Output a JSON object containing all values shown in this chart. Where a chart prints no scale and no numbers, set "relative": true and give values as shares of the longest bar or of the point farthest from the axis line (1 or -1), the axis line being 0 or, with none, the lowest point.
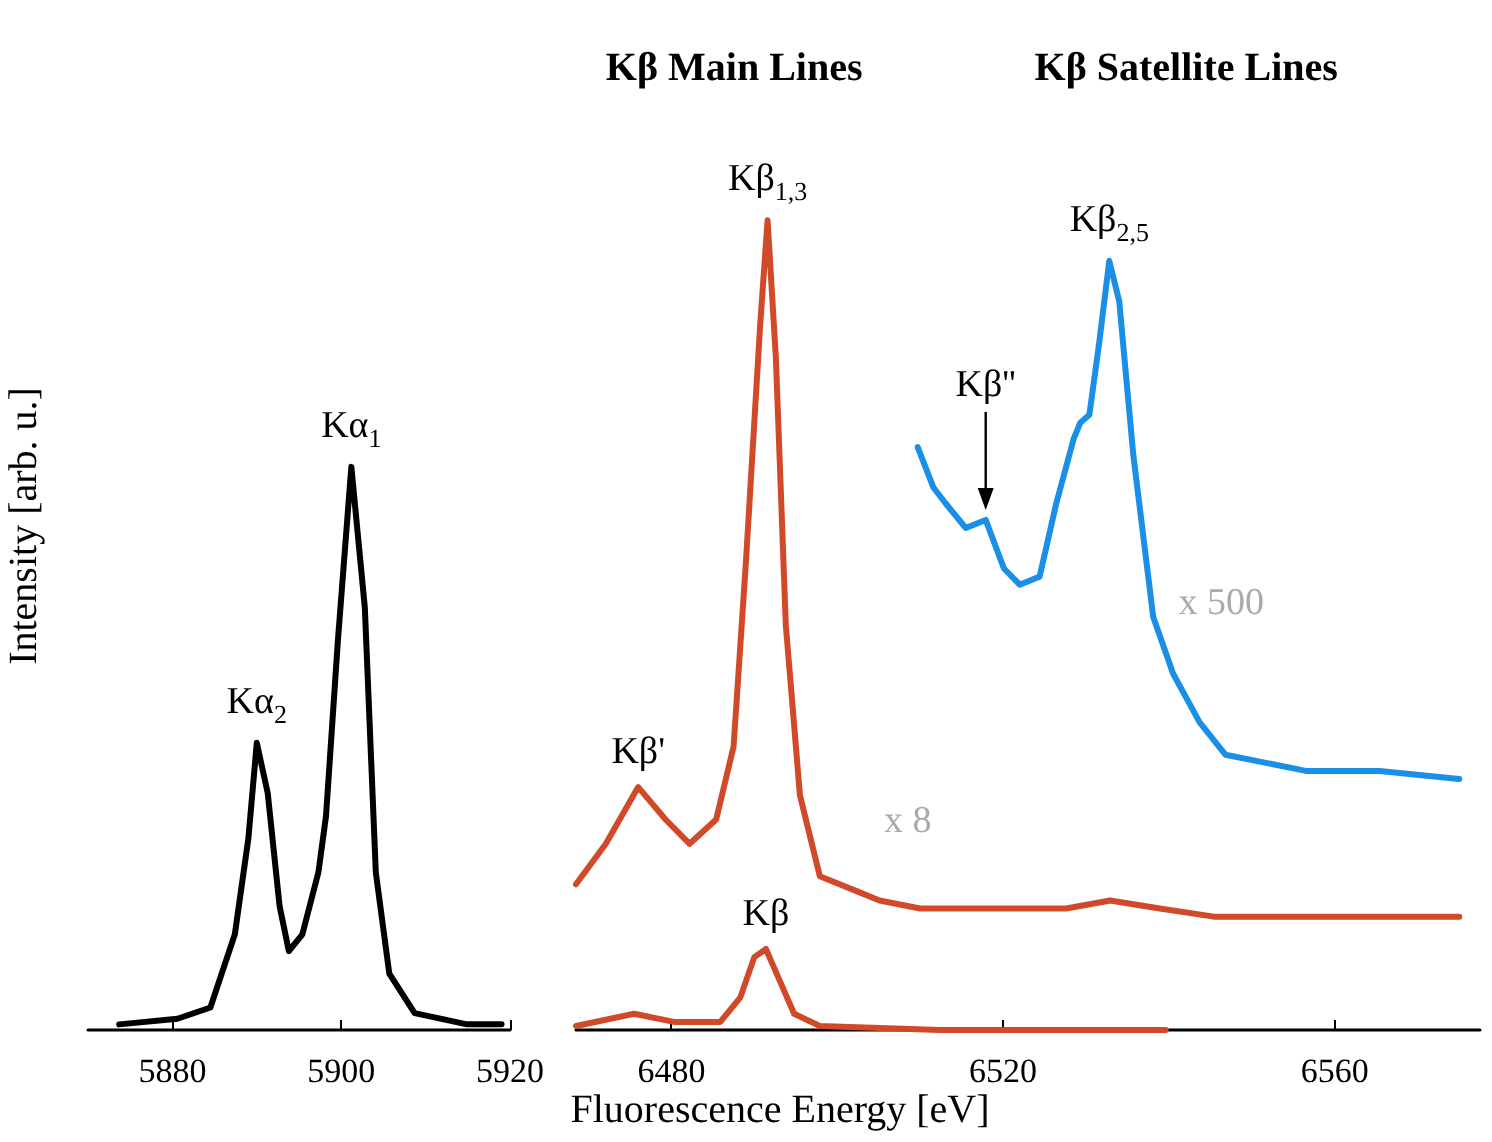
{
  "chart_data": [
    {
      "type": "line",
      "relative": true,
      "ylabel": "Intensity [arb. u.]",
      "xlim": [
        5870,
        5920
      ],
      "xticks": [
        5880,
        5900,
        5920
      ],
      "grid": false,
      "marker": "none",
      "line_style": "solid",
      "series": [
        {
          "color": "#000000",
          "x": [
            5873.7,
            5880.6,
            5884.5,
            5887.4,
            5889.0,
            5890.0,
            5891.3,
            5892.7,
            5893.8,
            5895.4,
            5897.3,
            5898.2,
            5899.6,
            5901.2,
            5902.8,
            5904.1,
            5905.7,
            5908.7,
            5914.9,
            5919.0
          ],
          "values": [
            0.01,
            0.02,
            0.04,
            0.17,
            0.34,
            0.51,
            0.42,
            0.22,
            0.14,
            0.17,
            0.28,
            0.38,
            0.69,
            1.0,
            0.75,
            0.28,
            0.1,
            0.03,
            0.01,
            0.01
          ]
        }
      ],
      "annotations": [
        {
          "text": "Kα$_{2}$",
          "x": 5890.0,
          "y": 0.51
        },
        {
          "text": "Kα$_{1}$",
          "x": 5901.2,
          "y": 1.0
        }
      ]
    },
    {
      "type": "line",
      "relative": true,
      "xlabel": "Fluorescence Energy [eV]",
      "xlim": [
        6468.5,
        6577.5
      ],
      "xticks": [
        6480,
        6520,
        6560
      ],
      "grid": false,
      "marker": "none",
      "line_style": "solid",
      "series": [
        {
          "color": "#d04a2a",
          "x": [
            6468.5,
            6475.5,
            6480.3,
            6485.9,
            6488.3,
            6490.0,
            6491.4,
            6493.1,
            6494.8,
            6497.9,
            6512.4,
            6539.6
          ],
          "values": [
            0.005,
            0.02,
            0.01,
            0.01,
            0.04,
            0.09,
            0.1,
            0.06,
            0.02,
            0.005,
            0,
            0
          ]
        },
        {
          "name": "x 8",
          "color": "#d04a2a",
          "x": [
            6468.5,
            6472.1,
            6476.0,
            6479.3,
            6482.2,
            6485.4,
            6487.5,
            6489.0,
            6490.7,
            6491.6,
            6492.6,
            6493.8,
            6495.5,
            6497.9,
            6502.7,
            6505.1,
            6510.0,
            6520.1,
            6527.6,
            6532.9,
            6538.9,
            6545.4,
            6575.0
          ],
          "values": [
            0.18,
            0.23,
            0.3,
            0.26,
            0.23,
            0.26,
            0.35,
            0.58,
            0.87,
            1.0,
            0.83,
            0.5,
            0.29,
            0.19,
            0.17,
            0.16,
            0.15,
            0.15,
            0.15,
            0.16,
            0.15,
            0.14,
            0.14
          ]
        },
        {
          "name": "x 500",
          "color": "#1a8fe6",
          "x": [
            6509.7,
            6511.6,
            6513.1,
            6515.5,
            6517.9,
            6520.1,
            6522.0,
            6524.4,
            6526.4,
            6528.5,
            6529.3,
            6530.4,
            6531.6,
            6532.8,
            6534.0,
            6535.7,
            6538.1,
            6540.5,
            6543.7,
            6546.8,
            6551.7,
            6556.5,
            6565.4,
            6575.0
          ],
          "values": [
            0.72,
            0.67,
            0.65,
            0.62,
            0.63,
            0.57,
            0.55,
            0.56,
            0.65,
            0.73,
            0.75,
            0.76,
            0.85,
            0.95,
            0.9,
            0.71,
            0.51,
            0.44,
            0.38,
            0.34,
            0.33,
            0.32,
            0.32,
            0.31
          ]
        }
      ],
      "annotations": [
        "Kβ Main Lines",
        "Kβ Satellite Lines",
        {
          "text": "Kβ'",
          "x": 6476.0,
          "y": 0.3
        },
        {
          "text": "Kβ$_{1,3}$",
          "x": 6491.6,
          "y": 1.0
        },
        {
          "text": "Kβ",
          "x": 6491.4,
          "y": 0.1
        },
        {
          "text": "Kβ''",
          "x": 6517.9,
          "y": 0.63
        },
        {
          "text": "Kβ$_{2,5}$",
          "x": 6532.8,
          "y": 0.95
        }
      ]
    }
  ]
}
